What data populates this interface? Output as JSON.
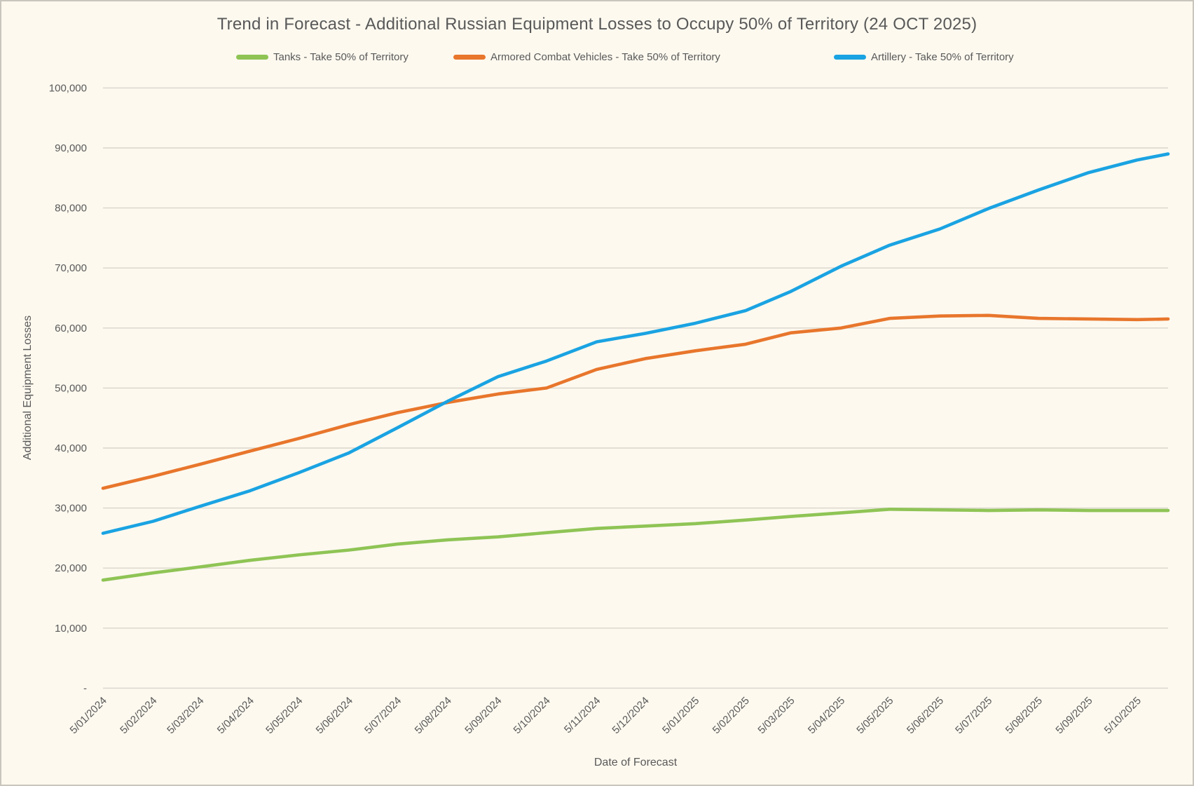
{
  "window": {
    "background": "#FDF9EF",
    "border_color": "#C9C6BD",
    "text_color": "#595959"
  },
  "chart_data": {
    "type": "line",
    "title": "Trend in Forecast - Additional Russian Equipment Losses to Occupy 50% of Territory (24 OCT 2025)",
    "xlabel": "Date of Forecast",
    "ylabel": "Additional Equipment Losses",
    "ylim": [
      0,
      100000
    ],
    "ytick_interval": 10000,
    "ytick_zero_label": "-",
    "grid": "horizontal-only",
    "grid_color": "#D9D5CC",
    "legend_position": "top",
    "x_axis_type": "date",
    "categories": [
      "5/01/2024",
      "5/02/2024",
      "5/03/2024",
      "5/04/2024",
      "5/05/2024",
      "5/06/2024",
      "5/07/2024",
      "5/08/2024",
      "5/09/2024",
      "5/10/2024",
      "5/11/2024",
      "5/12/2024",
      "5/01/2025",
      "5/02/2025",
      "5/03/2025",
      "5/04/2025",
      "5/05/2025",
      "5/06/2025",
      "5/07/2025",
      "5/08/2025",
      "5/09/2025",
      "5/10/2025"
    ],
    "data_end": {
      "label": "24 OCT 2025",
      "days_after_last_tick": 19
    },
    "series": [
      {
        "name": "Tanks - Take 50% of Territory",
        "color": "#8FC455",
        "values": [
          18000,
          19200,
          20200,
          21300,
          22200,
          23000,
          24000,
          24700,
          25200,
          25900,
          26600,
          27000,
          27400,
          28000,
          28600,
          29200,
          29800,
          29700,
          29600,
          29700,
          29600,
          29600
        ],
        "end_value": 29600
      },
      {
        "name": "Armored Combat Vehicles - Take 50% of Territory",
        "color": "#E8762C",
        "values": [
          33300,
          35300,
          37300,
          39500,
          41600,
          43900,
          45900,
          47600,
          49000,
          50000,
          53100,
          54900,
          56200,
          57300,
          59200,
          60000,
          61600,
          62000,
          62100,
          61600,
          61500,
          61400
        ],
        "end_value": 61500
      },
      {
        "name": "Artillery - Take 50% of Territory",
        "color": "#1AA3E2",
        "values": [
          25800,
          27800,
          30300,
          32900,
          35900,
          39200,
          43400,
          47800,
          51900,
          54500,
          57700,
          59100,
          60800,
          62900,
          66100,
          70300,
          73800,
          76500,
          79900,
          83000,
          85900,
          88000
        ],
        "end_value": 89000
      }
    ]
  }
}
